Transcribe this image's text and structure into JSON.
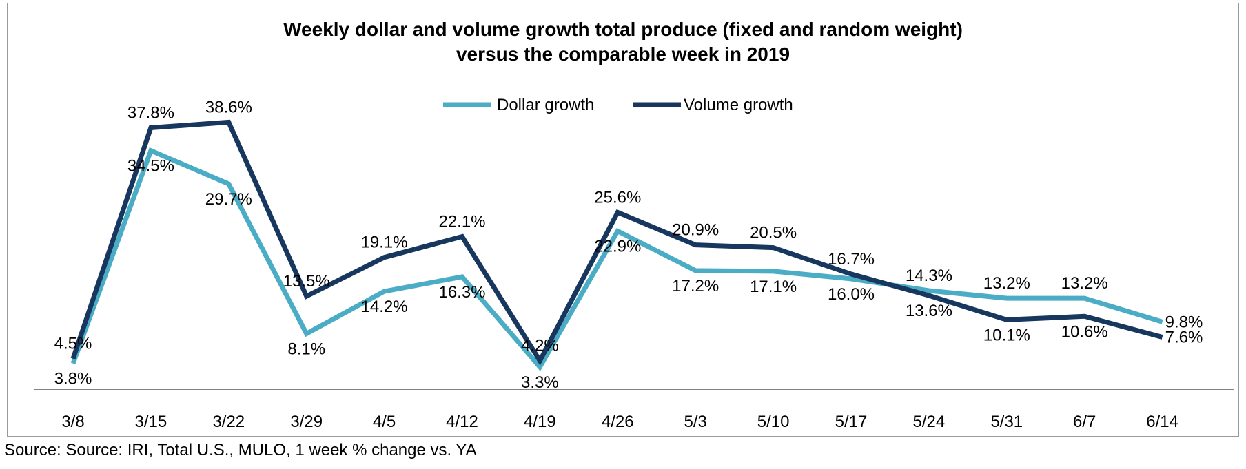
{
  "chart_data": {
    "type": "line",
    "title": "Weekly dollar and volume growth  total produce (fixed and random weight)",
    "subtitle": "versus the comparable week in 2019",
    "xlabel": "",
    "ylabel": "",
    "categories": [
      "3/8",
      "3/15",
      "3/22",
      "3/29",
      "4/5",
      "4/12",
      "4/19",
      "4/26",
      "5/3",
      "5/10",
      "5/17",
      "5/24",
      "5/31",
      "6/7",
      "6/14"
    ],
    "series": [
      {
        "name": "Dollar growth",
        "color": "#4bacc6",
        "values": [
          3.8,
          34.5,
          29.7,
          8.1,
          14.2,
          16.3,
          3.3,
          22.9,
          17.2,
          17.1,
          16.0,
          14.3,
          13.2,
          13.2,
          9.8
        ],
        "labels": [
          "3.8%",
          "34.5%",
          "29.7%",
          "8.1%",
          "14.2%",
          "16.3%",
          "3.3%",
          "22.9%",
          "17.2%",
          "17.1%",
          "16.0%",
          "14.3%",
          "13.2%",
          "13.2%",
          "9.8%"
        ]
      },
      {
        "name": "Volume growth",
        "color": "#17375e",
        "values": [
          4.5,
          37.8,
          38.6,
          13.5,
          19.1,
          22.1,
          4.2,
          25.6,
          20.9,
          20.5,
          16.7,
          13.6,
          10.1,
          10.6,
          7.6
        ],
        "labels": [
          "4.5%",
          "37.8%",
          "38.6%",
          "13.5%",
          "19.1%",
          "22.1%",
          "4.2%",
          "25.6%",
          "20.9%",
          "20.5%",
          "16.7%",
          "13.6%",
          "10.1%",
          "10.6%",
          "7.6%"
        ]
      }
    ],
    "ylim": [
      0,
      45
    ],
    "grid": false,
    "legend_position": "top-center",
    "axis_color": "#808080"
  },
  "footer": {
    "source": "Source: Source: IRI, Total U.S., MULO, 1 week % change vs. YA"
  }
}
